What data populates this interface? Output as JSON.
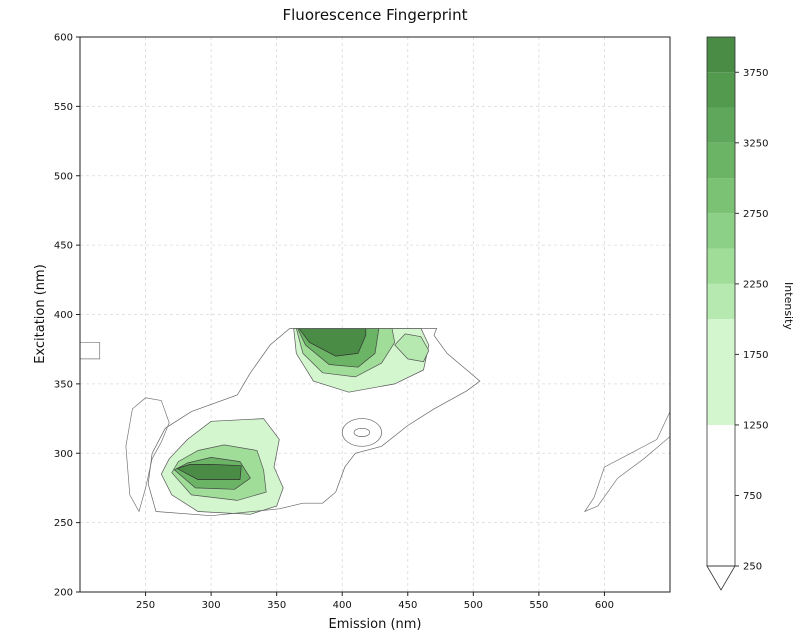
{
  "chart_data": {
    "type": "contour",
    "title": "Fluorescence Fingerprint",
    "xlabel": "Emission (nm)",
    "ylabel": "Excitation (nm)",
    "xlim": [
      200,
      650
    ],
    "ylim": [
      200,
      600
    ],
    "xticks": [
      250,
      300,
      350,
      400,
      450,
      500,
      550,
      600
    ],
    "yticks": [
      200,
      250,
      300,
      350,
      400,
      450,
      500,
      550,
      600
    ],
    "grid": true,
    "colorbar": {
      "label": "Intensity",
      "ticks": [
        250,
        750,
        1250,
        1750,
        2250,
        2750,
        3250,
        3750
      ],
      "levels": [
        250,
        1250,
        2000,
        2250,
        2500,
        2750,
        3000,
        3250,
        3500,
        3750,
        4000
      ],
      "colors": [
        "#ffffff",
        "#d3f6cf",
        "#b6e9b0",
        "#9fdd98",
        "#8ccf86",
        "#7bc275",
        "#6cb465",
        "#5fa75a",
        "#53994e",
        "#4a8c46"
      ],
      "extend": "min"
    },
    "peaks": [
      {
        "emission": 300,
        "excitation": 285,
        "intensity": 3900
      },
      {
        "emission": 395,
        "excitation": 380,
        "intensity": 3800
      },
      {
        "emission": 420,
        "excitation": 370,
        "intensity": 2300
      },
      {
        "emission": 415,
        "excitation": 315,
        "intensity": 900
      }
    ]
  }
}
